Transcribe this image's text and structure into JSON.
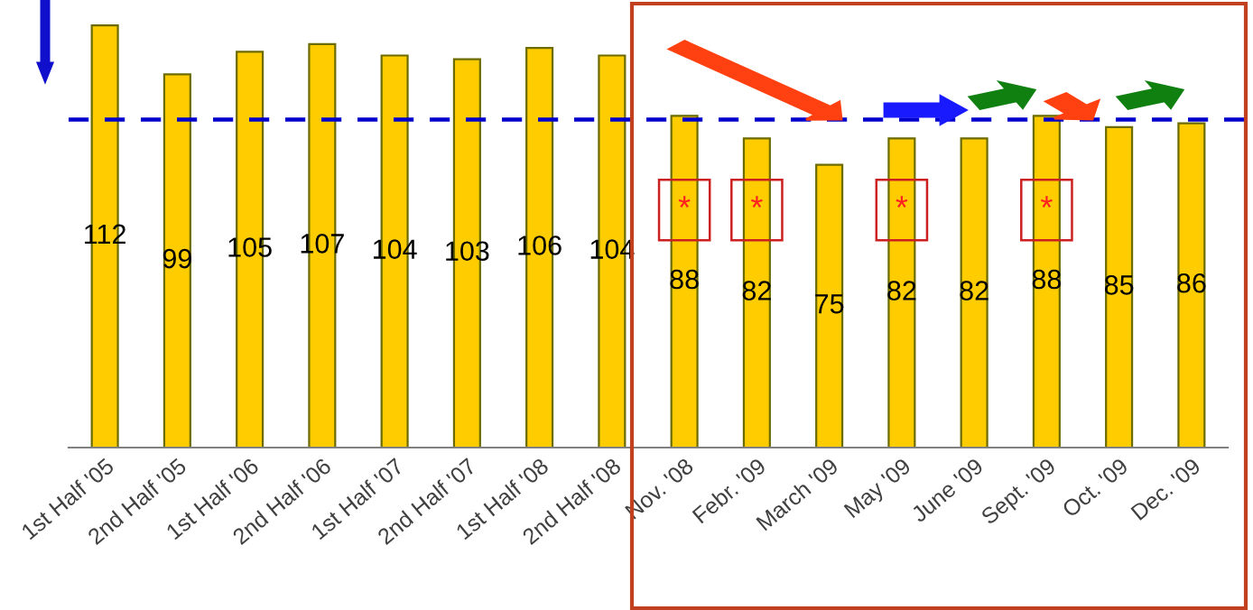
{
  "chart_data": {
    "type": "bar",
    "categories": [
      "1st Half '05",
      "2nd Half '05",
      "1st Half '06",
      "2nd Half '06",
      "1st Half '07",
      "2nd Half '07",
      "1st Half '08",
      "2nd Half '08",
      "Nov. '08",
      "Febr. '09",
      "March '09",
      "May '09",
      "June '09",
      "Sept. '09",
      "Oct. '09",
      "Dec. '09"
    ],
    "values": [
      112,
      99,
      105,
      107,
      104,
      103,
      106,
      104,
      88,
      82,
      75,
      82,
      82,
      88,
      85,
      86
    ],
    "color": "#ffcc00",
    "data_labels": true,
    "ref_lines": [
      {
        "axis": "y",
        "value": 87,
        "label": null,
        "color": "#0000cc",
        "line_style": "dashed"
      }
    ],
    "annotations": [
      {
        "text": "*",
        "x": "Nov. '08",
        "y": 63
      },
      {
        "text": "*",
        "x": "Febr. '09",
        "y": 63
      },
      {
        "text": "*",
        "x": "May '09",
        "y": 63
      },
      {
        "text": "*",
        "x": "Sept. '09",
        "y": 63
      }
    ],
    "grid": false,
    "legend": false
  }
}
